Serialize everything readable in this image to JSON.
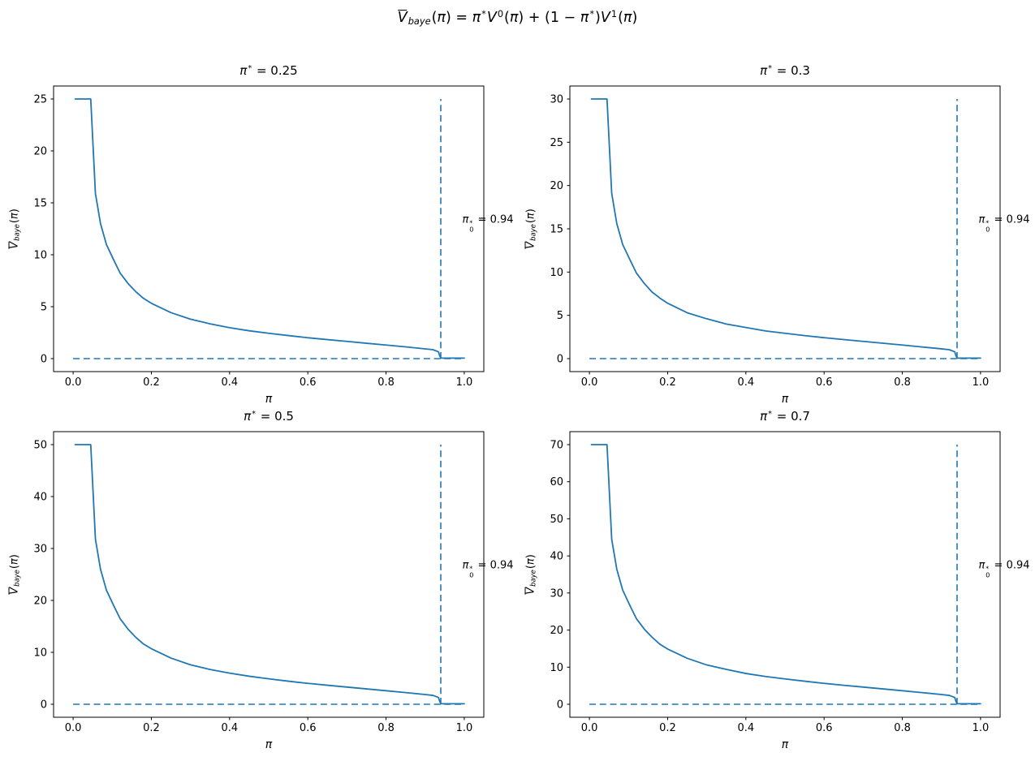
{
  "figure": {
    "suptitle_text": "V̄baye(π) = π*V⁰(π) + (1 − π*)V¹(π)",
    "suptitle_tokens": [
      {
        "t": "over",
        "v": "V",
        "i": true
      },
      {
        "t": "sub",
        "v": "baye",
        "i": true
      },
      {
        "t": "text",
        "v": "("
      },
      {
        "t": "text",
        "v": "π",
        "i": true
      },
      {
        "t": "text",
        "v": ") = "
      },
      {
        "t": "text",
        "v": "π",
        "i": true
      },
      {
        "t": "sup",
        "v": "*"
      },
      {
        "t": "text",
        "v": "V",
        "i": true
      },
      {
        "t": "sup",
        "v": "0"
      },
      {
        "t": "text",
        "v": "("
      },
      {
        "t": "text",
        "v": "π",
        "i": true
      },
      {
        "t": "text",
        "v": ") + (1 − "
      },
      {
        "t": "text",
        "v": "π",
        "i": true
      },
      {
        "t": "sup",
        "v": "*"
      },
      {
        "t": "text",
        "v": ")"
      },
      {
        "t": "text",
        "v": "V",
        "i": true
      },
      {
        "t": "sup",
        "v": "1"
      },
      {
        "t": "text",
        "v": "("
      },
      {
        "t": "text",
        "v": "π",
        "i": true
      },
      {
        "t": "text",
        "v": ")"
      }
    ],
    "colors": {
      "line": "#1f77b4",
      "spine": "#000000",
      "text": "#000000",
      "background": "#ffffff"
    }
  },
  "chart_data": [
    {
      "type": "line",
      "title": "π* = 0.25",
      "title_tokens": [
        {
          "t": "text",
          "v": "π",
          "i": true
        },
        {
          "t": "sup",
          "v": "*"
        },
        {
          "t": "text",
          "v": " = 0.25"
        }
      ],
      "pi_star": 0.25,
      "xlabel": "π",
      "xlabel_tokens": [
        {
          "t": "text",
          "v": "π",
          "i": true
        }
      ],
      "ylabel": "V̄baye(π)",
      "ylabel_tokens": [
        {
          "t": "over",
          "v": "V",
          "i": true
        },
        {
          "t": "sub",
          "v": "baye",
          "i": true
        },
        {
          "t": "text",
          "v": "("
        },
        {
          "t": "text",
          "v": "π",
          "i": true
        },
        {
          "t": "text",
          "v": ")"
        }
      ],
      "xlim": [
        0,
        1
      ],
      "ylim": [
        0,
        25
      ],
      "grid": false,
      "legend": null,
      "xticks": [
        0,
        0.2,
        0.4,
        0.6,
        0.8,
        1.0
      ],
      "xtick_labels": [
        "0.0",
        "0.2",
        "0.4",
        "0.6",
        "0.8",
        "1.0"
      ],
      "yticks": [
        0,
        5,
        10,
        15,
        20,
        25
      ],
      "x": [
        0.005,
        0.045,
        0.057,
        0.07,
        0.085,
        0.105,
        0.12,
        0.14,
        0.16,
        0.18,
        0.2,
        0.25,
        0.3,
        0.35,
        0.4,
        0.45,
        0.5,
        0.55,
        0.6,
        0.65,
        0.7,
        0.75,
        0.8,
        0.85,
        0.9,
        0.92,
        0.934,
        0.937,
        0.94,
        0.96,
        1.0
      ],
      "y": [
        25,
        25,
        15.9,
        13,
        11,
        9.4,
        8.25,
        7.25,
        6.45,
        5.8,
        5.33,
        4.43,
        3.8,
        3.35,
        2.98,
        2.68,
        2.44,
        2.22,
        2.01,
        1.83,
        1.66,
        1.48,
        1.31,
        1.13,
        0.94,
        0.86,
        0.66,
        0.3,
        0.05,
        0.05,
        0.05
      ],
      "hline": {
        "y": 0,
        "x0": 0,
        "x1": 1,
        "style": "dashed"
      },
      "vline": {
        "x": 0.94,
        "y0": 0,
        "y1": 25,
        "style": "dashed"
      },
      "annotation": {
        "text": "π₀* = 0.94",
        "value": 0.94,
        "tokens": [
          {
            "t": "text",
            "v": "π",
            "i": true
          },
          {
            "t": "supsub",
            "sup": "*",
            "sub": "0"
          },
          {
            "t": "text",
            "v": " = 0.94"
          }
        ]
      }
    },
    {
      "type": "line",
      "title": "π* = 0.3",
      "title_tokens": [
        {
          "t": "text",
          "v": "π",
          "i": true
        },
        {
          "t": "sup",
          "v": "*"
        },
        {
          "t": "text",
          "v": " = 0.3"
        }
      ],
      "pi_star": 0.3,
      "xlabel": "π",
      "xlabel_tokens": [
        {
          "t": "text",
          "v": "π",
          "i": true
        }
      ],
      "ylabel": "V̄baye(π)",
      "ylabel_tokens": [
        {
          "t": "over",
          "v": "V",
          "i": true
        },
        {
          "t": "sub",
          "v": "baye",
          "i": true
        },
        {
          "t": "text",
          "v": "("
        },
        {
          "t": "text",
          "v": "π",
          "i": true
        },
        {
          "t": "text",
          "v": ")"
        }
      ],
      "xlim": [
        0,
        1
      ],
      "ylim": [
        0,
        30
      ],
      "grid": false,
      "legend": null,
      "xticks": [
        0,
        0.2,
        0.4,
        0.6,
        0.8,
        1.0
      ],
      "xtick_labels": [
        "0.0",
        "0.2",
        "0.4",
        "0.6",
        "0.8",
        "1.0"
      ],
      "yticks": [
        0,
        5,
        10,
        15,
        20,
        25,
        30
      ],
      "x": [
        0.005,
        0.045,
        0.057,
        0.07,
        0.085,
        0.105,
        0.12,
        0.14,
        0.16,
        0.18,
        0.2,
        0.25,
        0.3,
        0.35,
        0.4,
        0.45,
        0.5,
        0.55,
        0.6,
        0.65,
        0.7,
        0.75,
        0.8,
        0.85,
        0.9,
        0.92,
        0.934,
        0.937,
        0.94,
        0.96,
        1.0
      ],
      "y": [
        30,
        30,
        19.1,
        15.6,
        13.2,
        11.3,
        9.9,
        8.7,
        7.7,
        7.0,
        6.4,
        5.3,
        4.6,
        4.0,
        3.6,
        3.2,
        2.93,
        2.66,
        2.42,
        2.2,
        1.99,
        1.78,
        1.57,
        1.35,
        1.13,
        1.03,
        0.79,
        0.36,
        0.06,
        0.06,
        0.06
      ],
      "hline": {
        "y": 0,
        "x0": 0,
        "x1": 1,
        "style": "dashed"
      },
      "vline": {
        "x": 0.94,
        "y0": 0,
        "y1": 30,
        "style": "dashed"
      },
      "annotation": {
        "text": "π₀* = 0.94",
        "value": 0.94,
        "tokens": [
          {
            "t": "text",
            "v": "π",
            "i": true
          },
          {
            "t": "supsub",
            "sup": "*",
            "sub": "0"
          },
          {
            "t": "text",
            "v": " = 0.94"
          }
        ]
      }
    },
    {
      "type": "line",
      "title": "π* = 0.5",
      "title_tokens": [
        {
          "t": "text",
          "v": "π",
          "i": true
        },
        {
          "t": "sup",
          "v": "*"
        },
        {
          "t": "text",
          "v": " = 0.5"
        }
      ],
      "pi_star": 0.5,
      "xlabel": "π",
      "xlabel_tokens": [
        {
          "t": "text",
          "v": "π",
          "i": true
        }
      ],
      "ylabel": "V̄baye(π)",
      "ylabel_tokens": [
        {
          "t": "over",
          "v": "V",
          "i": true
        },
        {
          "t": "sub",
          "v": "baye",
          "i": true
        },
        {
          "t": "text",
          "v": "("
        },
        {
          "t": "text",
          "v": "π",
          "i": true
        },
        {
          "t": "text",
          "v": ")"
        }
      ],
      "xlim": [
        0,
        1
      ],
      "ylim": [
        0,
        50
      ],
      "grid": false,
      "legend": null,
      "xticks": [
        0,
        0.2,
        0.4,
        0.6,
        0.8,
        1.0
      ],
      "xtick_labels": [
        "0.0",
        "0.2",
        "0.4",
        "0.6",
        "0.8",
        "1.0"
      ],
      "yticks": [
        0,
        10,
        20,
        30,
        40,
        50
      ],
      "x": [
        0.005,
        0.045,
        0.057,
        0.07,
        0.085,
        0.105,
        0.12,
        0.14,
        0.16,
        0.18,
        0.2,
        0.25,
        0.3,
        0.35,
        0.4,
        0.45,
        0.5,
        0.55,
        0.6,
        0.65,
        0.7,
        0.75,
        0.8,
        0.85,
        0.9,
        0.92,
        0.934,
        0.937,
        0.94,
        0.96,
        1.0
      ],
      "y": [
        50,
        50,
        31.8,
        26,
        22,
        18.8,
        16.5,
        14.5,
        12.9,
        11.6,
        10.7,
        8.9,
        7.6,
        6.7,
        6.0,
        5.4,
        4.9,
        4.44,
        4.03,
        3.66,
        3.31,
        2.96,
        2.61,
        2.25,
        1.88,
        1.71,
        1.32,
        0.6,
        0.1,
        0.1,
        0.1
      ],
      "hline": {
        "y": 0,
        "x0": 0,
        "x1": 1,
        "style": "dashed"
      },
      "vline": {
        "x": 0.94,
        "y0": 0,
        "y1": 50,
        "style": "dashed"
      },
      "annotation": {
        "text": "π₀* = 0.94",
        "value": 0.94,
        "tokens": [
          {
            "t": "text",
            "v": "π",
            "i": true
          },
          {
            "t": "supsub",
            "sup": "*",
            "sub": "0"
          },
          {
            "t": "text",
            "v": " = 0.94"
          }
        ]
      }
    },
    {
      "type": "line",
      "title": "π* = 0.7",
      "title_tokens": [
        {
          "t": "text",
          "v": "π",
          "i": true
        },
        {
          "t": "sup",
          "v": "*"
        },
        {
          "t": "text",
          "v": " = 0.7"
        }
      ],
      "pi_star": 0.7,
      "xlabel": "π",
      "xlabel_tokens": [
        {
          "t": "text",
          "v": "π",
          "i": true
        }
      ],
      "ylabel": "V̄baye(π)",
      "ylabel_tokens": [
        {
          "t": "over",
          "v": "V",
          "i": true
        },
        {
          "t": "sub",
          "v": "baye",
          "i": true
        },
        {
          "t": "text",
          "v": "("
        },
        {
          "t": "text",
          "v": "π",
          "i": true
        },
        {
          "t": "text",
          "v": ")"
        }
      ],
      "xlim": [
        0,
        1
      ],
      "ylim": [
        0,
        70
      ],
      "grid": false,
      "legend": null,
      "xticks": [
        0,
        0.2,
        0.4,
        0.6,
        0.8,
        1.0
      ],
      "xtick_labels": [
        "0.0",
        "0.2",
        "0.4",
        "0.6",
        "0.8",
        "1.0"
      ],
      "yticks": [
        0,
        10,
        20,
        30,
        40,
        50,
        60,
        70
      ],
      "x": [
        0.005,
        0.045,
        0.057,
        0.07,
        0.085,
        0.105,
        0.12,
        0.14,
        0.16,
        0.18,
        0.2,
        0.25,
        0.3,
        0.35,
        0.4,
        0.45,
        0.5,
        0.55,
        0.6,
        0.65,
        0.7,
        0.75,
        0.8,
        0.85,
        0.9,
        0.92,
        0.934,
        0.937,
        0.94,
        0.96,
        1.0
      ],
      "y": [
        70,
        70,
        44.5,
        36.4,
        30.8,
        26.3,
        23.1,
        20.3,
        18.1,
        16.2,
        14.9,
        12.4,
        10.6,
        9.4,
        8.3,
        7.5,
        6.83,
        6.22,
        5.64,
        5.12,
        4.63,
        4.14,
        3.65,
        3.15,
        2.63,
        2.39,
        1.85,
        0.84,
        0.14,
        0.14,
        0.14
      ],
      "hline": {
        "y": 0,
        "x0": 0,
        "x1": 1,
        "style": "dashed"
      },
      "vline": {
        "x": 0.94,
        "y0": 0,
        "y1": 70,
        "style": "dashed"
      },
      "annotation": {
        "text": "π₀* = 0.94",
        "value": 0.94,
        "tokens": [
          {
            "t": "text",
            "v": "π",
            "i": true
          },
          {
            "t": "supsub",
            "sup": "*",
            "sub": "0"
          },
          {
            "t": "text",
            "v": " = 0.94"
          }
        ]
      }
    }
  ]
}
